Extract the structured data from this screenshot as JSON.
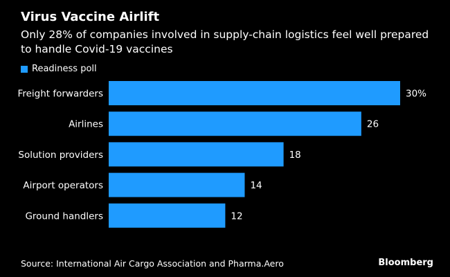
{
  "header": {
    "title": "Virus Vaccine Airlift",
    "subtitle": "Only 28% of companies involved in supply-chain logistics feel well prepared to handle Covid-19 vaccines"
  },
  "legend": {
    "label": "Readiness poll"
  },
  "footer": {
    "source": "Source: International Air Cargo Association and Pharma.Aero",
    "brand": "Bloomberg"
  },
  "colors": {
    "background": "#000000",
    "bar": "#1f9bff",
    "text": "#ffffff"
  },
  "chart_data": {
    "type": "bar",
    "orientation": "horizontal",
    "title": "Virus Vaccine Airlift",
    "subtitle": "Only 28% of companies involved in supply-chain logistics feel well prepared to handle Covid-19 vaccines",
    "xlabel": "",
    "ylabel": "",
    "xlim": [
      0,
      30
    ],
    "grid": false,
    "legend": "top-left",
    "series": [
      {
        "name": "Readiness poll",
        "values": [
          30,
          26,
          18,
          14,
          12
        ],
        "labels": [
          "30%",
          "26",
          "18",
          "14",
          "12"
        ]
      }
    ],
    "categories": [
      "Freight forwarders",
      "Airlines",
      "Solution providers",
      "Airport operators",
      "Ground handlers"
    ]
  }
}
